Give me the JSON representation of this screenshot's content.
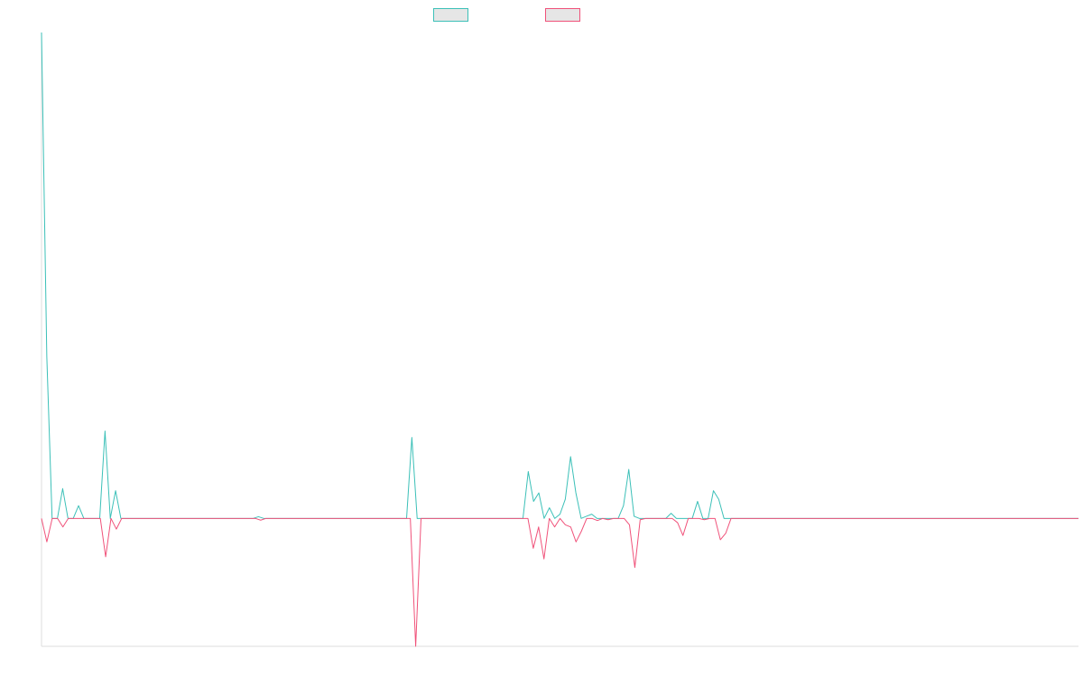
{
  "chart_data": {
    "type": "line",
    "title": "",
    "xlabel": "",
    "ylabel": "",
    "grid": false,
    "legend_placement": "top",
    "colors": {
      "series_a": "#3cc0b8",
      "series_b": "#f0527a",
      "axis": "#dddddd"
    },
    "ylim": [
      -300,
      1140
    ],
    "series": [
      {
        "key": "a",
        "color": "#3cc0b8",
        "values": [
          1140,
          380,
          0,
          0,
          70,
          0,
          0,
          30,
          0,
          0,
          0,
          0,
          205,
          0,
          65,
          0,
          0,
          0,
          0,
          0,
          0,
          0,
          0,
          0,
          0,
          0,
          0,
          0,
          0,
          0,
          0,
          0,
          0,
          0,
          0,
          0,
          0,
          0,
          0,
          0,
          0,
          4,
          0,
          0,
          0,
          0,
          0,
          0,
          0,
          0,
          0,
          0,
          0,
          0,
          0,
          0,
          0,
          0,
          0,
          0,
          0,
          0,
          0,
          0,
          0,
          0,
          0,
          0,
          0,
          0,
          190,
          0,
          0,
          0,
          0,
          0,
          0,
          0,
          0,
          0,
          0,
          0,
          0,
          0,
          0,
          0,
          0,
          0,
          0,
          0,
          0,
          0,
          110,
          40,
          60,
          0,
          25,
          0,
          10,
          45,
          145,
          60,
          0,
          5,
          10,
          0,
          0,
          0,
          0,
          0,
          30,
          115,
          5,
          0,
          0,
          0,
          0,
          0,
          0,
          12,
          0,
          0,
          0,
          0,
          40,
          0,
          0,
          65,
          45,
          0,
          0,
          0,
          0,
          0,
          0,
          0,
          0,
          0,
          0,
          0,
          0,
          0,
          0,
          0,
          0,
          0,
          0,
          0,
          0,
          0,
          0,
          0,
          0,
          0,
          0,
          0,
          0,
          0,
          0,
          0,
          0,
          0,
          0,
          0,
          0,
          0,
          0,
          0,
          0,
          0,
          0,
          0,
          0,
          0,
          0,
          0,
          0,
          0,
          0,
          0,
          0,
          0,
          0,
          0,
          0,
          0,
          0,
          0,
          0,
          0,
          0,
          0,
          0,
          0,
          0,
          0,
          0
        ]
      },
      {
        "key": "b",
        "color": "#f0527a",
        "values": [
          0,
          -55,
          0,
          0,
          -20,
          0,
          0,
          0,
          0,
          0,
          0,
          0,
          -90,
          0,
          -25,
          0,
          0,
          0,
          0,
          0,
          0,
          0,
          0,
          0,
          0,
          0,
          0,
          0,
          0,
          0,
          0,
          0,
          0,
          0,
          0,
          0,
          0,
          0,
          0,
          0,
          0,
          -4,
          0,
          0,
          0,
          0,
          0,
          0,
          0,
          0,
          0,
          0,
          0,
          0,
          0,
          0,
          0,
          0,
          0,
          0,
          0,
          0,
          0,
          0,
          0,
          0,
          0,
          0,
          0,
          0,
          -300,
          0,
          0,
          0,
          0,
          0,
          0,
          0,
          0,
          0,
          0,
          0,
          0,
          0,
          0,
          0,
          0,
          0,
          0,
          0,
          0,
          0,
          -70,
          -20,
          -95,
          0,
          -20,
          0,
          -15,
          -20,
          -55,
          -30,
          0,
          0,
          -5,
          0,
          -3,
          0,
          0,
          0,
          -15,
          -115,
          -3,
          0,
          0,
          0,
          0,
          0,
          0,
          -10,
          -40,
          0,
          0,
          0,
          -3,
          0,
          0,
          -50,
          -35,
          0,
          0,
          0,
          0,
          0,
          0,
          0,
          0,
          0,
          0,
          0,
          0,
          0,
          0,
          0,
          0,
          0,
          0,
          0,
          0,
          0,
          0,
          0,
          0,
          0,
          0,
          0,
          0,
          0,
          0,
          0,
          0,
          0,
          0,
          0,
          0,
          0,
          0,
          0,
          0,
          0,
          0,
          0,
          0,
          0,
          0,
          0,
          0,
          0,
          0,
          0,
          0,
          0,
          0,
          0,
          0,
          0,
          0,
          0,
          0,
          0,
          0,
          0,
          0,
          0,
          0
        ]
      }
    ]
  }
}
